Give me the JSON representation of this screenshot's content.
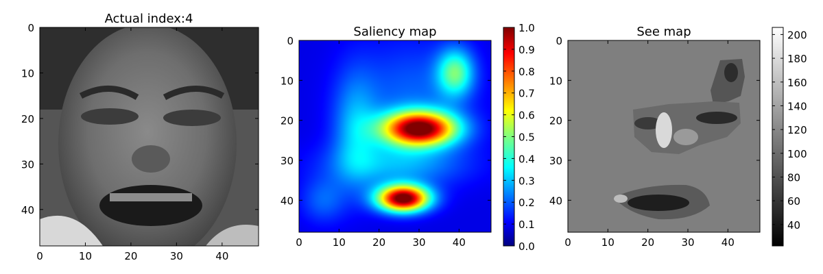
{
  "chart_data": [
    {
      "type": "image",
      "title": "Actual index:4",
      "content": "grayscale face image",
      "xlim": [
        0,
        48
      ],
      "ylim": [
        48,
        0
      ],
      "xticks": [
        0,
        10,
        20,
        30,
        40
      ],
      "yticks": [
        0,
        10,
        20,
        30,
        40
      ]
    },
    {
      "type": "heatmap",
      "title": "Saliency map",
      "colormap": "jet",
      "xlim": [
        0,
        48
      ],
      "ylim": [
        48,
        0
      ],
      "xticks": [
        0,
        10,
        20,
        30,
        40
      ],
      "yticks": [
        0,
        10,
        20,
        30,
        40
      ],
      "colorbar": {
        "range": [
          0.0,
          1.0
        ],
        "ticks": [
          "0.0",
          "0.1",
          "0.2",
          "0.3",
          "0.4",
          "0.5",
          "0.6",
          "0.7",
          "0.8",
          "0.9",
          "1.0"
        ]
      },
      "hotspots": [
        {
          "x": 30,
          "y": 22,
          "sx": 6.5,
          "sy": 3.0,
          "amp": 0.9
        },
        {
          "x": 26,
          "y": 39.5,
          "sx": 4.5,
          "sy": 2.3,
          "amp": 0.95
        },
        {
          "x": 39,
          "y": 8,
          "sx": 3.2,
          "sy": 4.2,
          "amp": 0.35
        },
        {
          "x": 24,
          "y": 31,
          "sx": 12,
          "sy": 4,
          "amp": 0.18
        },
        {
          "x": 14,
          "y": 22,
          "sx": 4,
          "sy": 10,
          "amp": 0.18
        },
        {
          "x": 28,
          "y": 14,
          "sx": 10,
          "sy": 10,
          "amp": 0.12
        },
        {
          "x": 6,
          "y": 40,
          "sx": 4,
          "sy": 4,
          "amp": 0.12
        }
      ]
    },
    {
      "type": "image",
      "title": "See map",
      "colormap": "gray",
      "content": "masked face regions (eyes and mouth) on uniform gray background",
      "xlim": [
        0,
        48
      ],
      "ylim": [
        48,
        0
      ],
      "xticks": [
        0,
        10,
        20,
        30,
        40
      ],
      "yticks": [
        0,
        10,
        20,
        30,
        40
      ],
      "colorbar": {
        "range": [
          22,
          206
        ],
        "ticks": [
          "40",
          "60",
          "80",
          "100",
          "120",
          "140",
          "160",
          "180",
          "200"
        ]
      }
    }
  ],
  "colors": {
    "background": "#ffffff",
    "axis": "#000000",
    "see_map_background": "#7f7f7f"
  }
}
